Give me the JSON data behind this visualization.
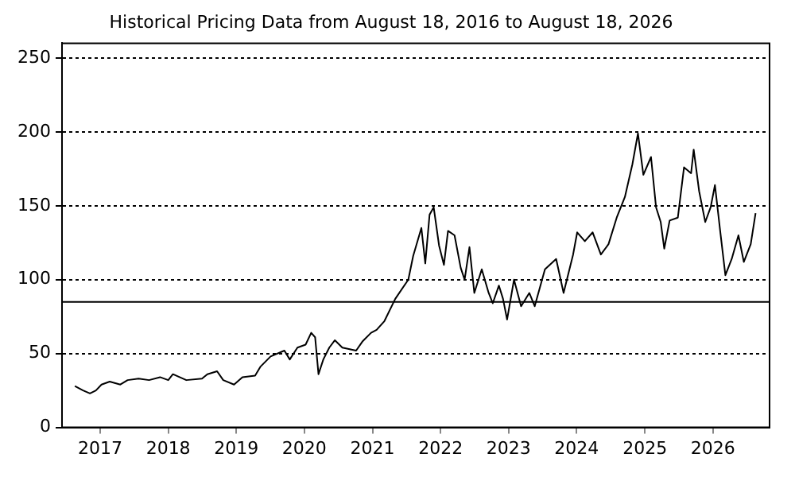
{
  "chart_data": {
    "type": "line",
    "title": "Historical Pricing Data from August 18, 2016 to August 18, 2026",
    "x": [
      "2016-08-18",
      "2016-10-01",
      "2016-11-07",
      "2016-12-09",
      "2017-01-08",
      "2017-02-21",
      "2017-04-19",
      "2017-05-28",
      "2017-07-26",
      "2017-09-20",
      "2017-11-18",
      "2018-01-01",
      "2018-01-26",
      "2018-04-08",
      "2018-07-01",
      "2018-07-30",
      "2018-09-20",
      "2018-10-23",
      "2018-12-20",
      "2019-02-03",
      "2019-04-12",
      "2019-05-10",
      "2019-07-04",
      "2019-09-16",
      "2019-10-15",
      "2019-11-25",
      "2020-01-08",
      "2020-02-07",
      "2020-02-28",
      "2020-03-17",
      "2020-04-12",
      "2020-05-14",
      "2020-06-13",
      "2020-07-23",
      "2020-10-05",
      "2020-11-07",
      "2020-12-24",
      "2021-01-23",
      "2021-03-06",
      "2021-05-03",
      "2021-07-12",
      "2021-08-07",
      "2021-09-20",
      "2021-10-11",
      "2021-11-03",
      "2021-11-25",
      "2021-12-24",
      "2022-01-19",
      "2022-02-10",
      "2022-03-17",
      "2022-04-19",
      "2022-05-10",
      "2022-06-05",
      "2022-07-01",
      "2022-08-10",
      "2022-09-16",
      "2022-10-08",
      "2022-11-10",
      "2022-12-02",
      "2022-12-24",
      "2023-01-30",
      "2023-03-09",
      "2023-04-22",
      "2023-05-21",
      "2023-07-15",
      "2023-09-13",
      "2023-10-23",
      "2023-12-13",
      "2024-01-04",
      "2024-02-14",
      "2024-03-27",
      "2024-05-10",
      "2024-06-20",
      "2024-08-03",
      "2024-09-16",
      "2024-10-26",
      "2024-11-25",
      "2024-12-24",
      "2025-02-03",
      "2025-03-02",
      "2025-03-27",
      "2025-04-15",
      "2025-05-14",
      "2025-06-27",
      "2025-07-30",
      "2025-09-06",
      "2025-09-20",
      "2025-10-19",
      "2025-11-21",
      "2025-12-20",
      "2026-01-12",
      "2026-02-10",
      "2026-03-09",
      "2026-04-12",
      "2026-05-18",
      "2026-06-16",
      "2026-07-23",
      "2026-08-18"
    ],
    "series": [
      {
        "color": "#000000",
        "values": [
          28,
          25,
          23,
          25,
          29,
          31,
          29,
          32,
          33,
          32,
          34,
          32,
          36,
          32,
          33,
          36,
          38,
          32,
          29,
          34,
          35,
          41,
          48,
          52,
          46,
          54,
          56,
          64,
          61,
          36,
          46,
          54,
          59,
          54,
          52,
          58,
          64,
          66,
          72,
          87,
          100,
          116,
          135,
          111,
          144,
          149,
          123,
          110,
          133,
          130,
          108,
          100,
          122,
          91,
          107,
          91,
          84,
          96,
          87,
          73,
          100,
          82,
          91,
          82,
          107,
          114,
          91,
          117,
          132,
          126,
          132,
          117,
          124,
          142,
          156,
          178,
          199,
          171,
          183,
          149,
          139,
          121,
          140,
          142,
          176,
          172,
          188,
          160,
          139,
          149,
          164,
          132,
          103,
          114,
          130,
          112,
          124,
          145
        ]
      }
    ],
    "xlim": [
      "2016-06-10",
      "2026-11-01"
    ],
    "xticks": [
      {
        "value": "2017-01-01",
        "label": "2017"
      },
      {
        "value": "2018-01-01",
        "label": "2018"
      },
      {
        "value": "2019-01-01",
        "label": "2019"
      },
      {
        "value": "2020-01-01",
        "label": "2020"
      },
      {
        "value": "2021-01-01",
        "label": "2021"
      },
      {
        "value": "2022-01-01",
        "label": "2022"
      },
      {
        "value": "2023-01-01",
        "label": "2023"
      },
      {
        "value": "2024-01-01",
        "label": "2024"
      },
      {
        "value": "2025-01-01",
        "label": "2025"
      },
      {
        "value": "2026-01-01",
        "label": "2026"
      }
    ],
    "ylim": [
      0,
      260
    ],
    "yticks": [
      0,
      50,
      100,
      150,
      200,
      250
    ],
    "grid": "y",
    "ref_lines": [
      {
        "axis": "y",
        "value": 85,
        "color": "#000000"
      }
    ]
  }
}
